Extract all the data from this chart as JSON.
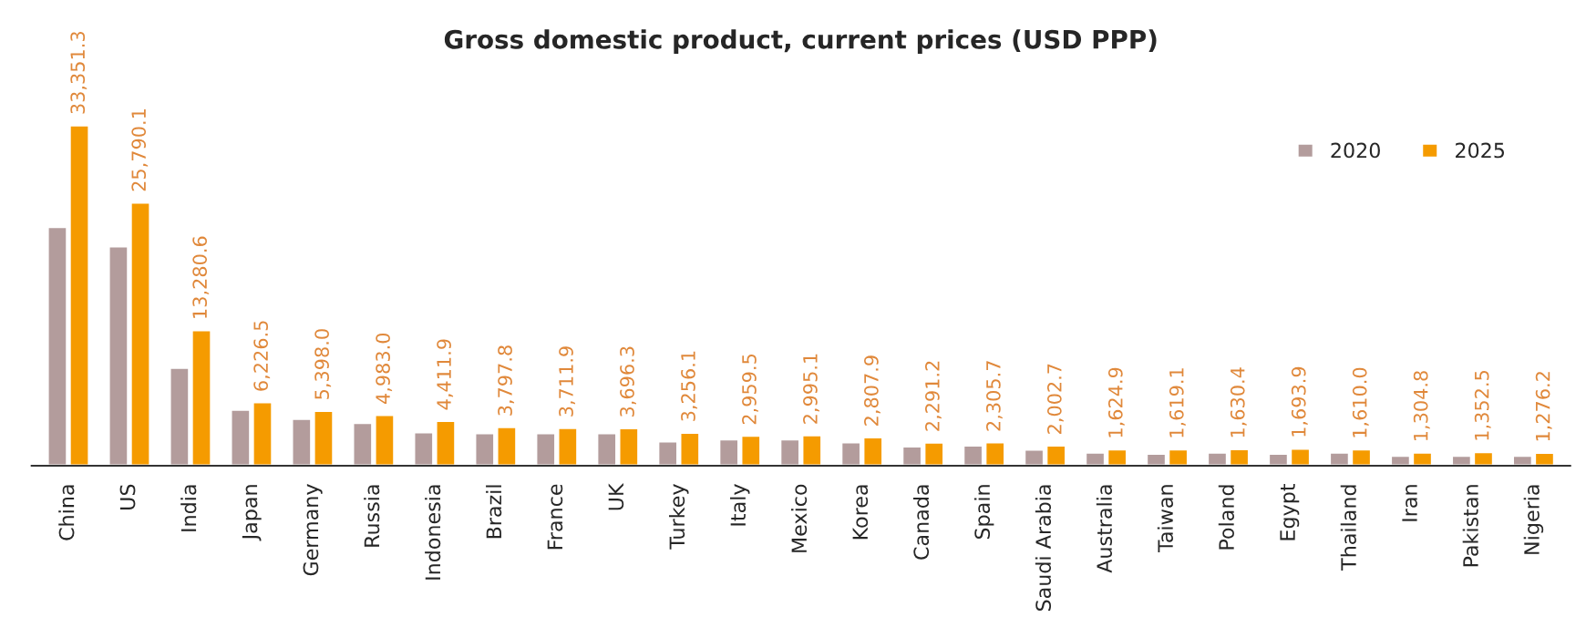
{
  "chart_data": {
    "type": "bar",
    "title": "Gross domestic product, current prices (USD PPP)",
    "categories": [
      "China",
      "US",
      "India",
      "Japan",
      "Germany",
      "Russia",
      "Indonesia",
      "Brazil",
      "France",
      "UK",
      "Turkey",
      "Italy",
      "Mexico",
      "Korea",
      "Canada",
      "Spain",
      "Saudi Arabia",
      "Australia",
      "Taiwan",
      "Poland",
      "Egypt",
      "Thailand",
      "Iran",
      "Pakistan",
      "Nigeria"
    ],
    "series": [
      {
        "name": "2020",
        "color": "#b39c9c",
        "values": [
          23400,
          21500,
          9600,
          5500,
          4600,
          4200,
          3300,
          3200,
          3200,
          3200,
          2400,
          2600,
          2600,
          2300,
          1900,
          2000,
          1600,
          1300,
          1200,
          1300,
          1200,
          1300,
          1000,
          1000,
          1000
        ]
      },
      {
        "name": "2025",
        "color": "#f59b00",
        "values": [
          33351.3,
          25790.1,
          13280.6,
          6226.5,
          5398.0,
          4983.0,
          4411.9,
          3797.8,
          3711.9,
          3696.3,
          3256.1,
          2959.5,
          2995.1,
          2807.9,
          2291.2,
          2305.7,
          2002.7,
          1624.9,
          1619.1,
          1630.4,
          1693.9,
          1610.0,
          1304.8,
          1352.5,
          1276.2
        ],
        "value_labels": [
          "33,351.3",
          "25,790.1",
          "13,280.6",
          "6,226.5",
          "5,398.0",
          "4,983.0",
          "4,411.9",
          "3,797.8",
          "3,711.9",
          "3,696.3",
          "3,256.1",
          "2,959.5",
          "2,995.1",
          "2,807.9",
          "2,291.2",
          "2,305.7",
          "2,002.7",
          "1,624.9",
          "1,619.1",
          "1,630.4",
          "1,693.9",
          "1,610.0",
          "1,304.8",
          "1,352.5",
          "1,276.2"
        ]
      }
    ],
    "legend": "top right",
    "grid": false,
    "tick_labels": "x"
  }
}
